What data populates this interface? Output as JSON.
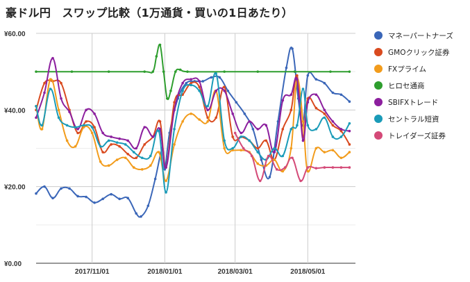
{
  "chart_data": {
    "type": "line",
    "title": "豪ドル円　スワップ比較（1万通貨・買いの1日あたり）",
    "y_ticks": [
      "¥0.00",
      "¥20.00",
      "¥40.00",
      "¥60.00"
    ],
    "x_ticks": [
      "2017/11/01",
      "2018/01/01",
      "2018/03/01",
      "2018/05/01"
    ],
    "ylim": [
      0,
      60
    ],
    "xlim": [
      "2017-09-15",
      "2018-06-10"
    ],
    "grid": true,
    "legend_position": "right",
    "series": [
      {
        "name": "マネーパートナーズ",
        "color": "#3a66b8",
        "points": [
          [
            "2017-09-15",
            18.2
          ],
          [
            "2017-09-22",
            20
          ],
          [
            "2017-09-29",
            17
          ],
          [
            "2017-10-06",
            19.5
          ],
          [
            "2017-10-13",
            19.5
          ],
          [
            "2017-10-20",
            17.5
          ],
          [
            "2017-10-27",
            17.3
          ],
          [
            "2017-11-03",
            15.8
          ],
          [
            "2017-11-10",
            16.8
          ],
          [
            "2017-11-17",
            18
          ],
          [
            "2017-11-24",
            16.8
          ],
          [
            "2017-12-01",
            17
          ],
          [
            "2017-12-08",
            13
          ],
          [
            "2017-12-12",
            12.2
          ],
          [
            "2017-12-18",
            15
          ],
          [
            "2017-12-24",
            22
          ],
          [
            "2017-12-30",
            30
          ],
          [
            "2018-01-01",
            24.5
          ],
          [
            "2018-01-05",
            34
          ],
          [
            "2018-01-12",
            43
          ],
          [
            "2018-01-19",
            47
          ],
          [
            "2018-01-26",
            47.5
          ],
          [
            "2018-02-02",
            47.5
          ],
          [
            "2018-02-09",
            48.5
          ],
          [
            "2018-02-16",
            48.5
          ],
          [
            "2018-02-23",
            45
          ],
          [
            "2018-03-02",
            42
          ],
          [
            "2018-03-09",
            39
          ],
          [
            "2018-03-16",
            35
          ],
          [
            "2018-03-23",
            27
          ],
          [
            "2018-03-30",
            22.5
          ],
          [
            "2018-04-06",
            37
          ],
          [
            "2018-04-13",
            51
          ],
          [
            "2018-04-18",
            56
          ],
          [
            "2018-04-23",
            43
          ],
          [
            "2018-04-27",
            36
          ],
          [
            "2018-05-01",
            49
          ],
          [
            "2018-05-08",
            48
          ],
          [
            "2018-05-15",
            47
          ],
          [
            "2018-05-22",
            44.5
          ],
          [
            "2018-05-29",
            44
          ],
          [
            "2018-06-05",
            42.2
          ]
        ]
      },
      {
        "name": "GMOクリック証券",
        "color": "#d94a1f",
        "points": [
          [
            "2017-09-15",
            40
          ],
          [
            "2017-09-22",
            47
          ],
          [
            "2017-09-29",
            47.5
          ],
          [
            "2017-10-06",
            47
          ],
          [
            "2017-10-13",
            40
          ],
          [
            "2017-10-20",
            34
          ],
          [
            "2017-10-27",
            37
          ],
          [
            "2017-11-03",
            35.5
          ],
          [
            "2017-11-10",
            29
          ],
          [
            "2017-11-17",
            31
          ],
          [
            "2017-11-24",
            30.5
          ],
          [
            "2017-12-01",
            28.5
          ],
          [
            "2017-12-08",
            27.5
          ],
          [
            "2017-12-15",
            31
          ],
          [
            "2017-12-22",
            33
          ],
          [
            "2017-12-28",
            37
          ],
          [
            "2018-01-02",
            25
          ],
          [
            "2018-01-09",
            42
          ],
          [
            "2018-01-16",
            44
          ],
          [
            "2018-01-23",
            47
          ],
          [
            "2018-01-30",
            46
          ],
          [
            "2018-02-06",
            38
          ],
          [
            "2018-02-13",
            38
          ],
          [
            "2018-02-20",
            46
          ],
          [
            "2018-02-27",
            33
          ],
          [
            "2018-03-06",
            33
          ],
          [
            "2018-03-13",
            32
          ],
          [
            "2018-03-20",
            30
          ],
          [
            "2018-03-27",
            32
          ],
          [
            "2018-04-03",
            27
          ],
          [
            "2018-04-10",
            35
          ],
          [
            "2018-04-17",
            40
          ],
          [
            "2018-04-22",
            49
          ],
          [
            "2018-04-27",
            33
          ],
          [
            "2018-05-01",
            43
          ],
          [
            "2018-05-08",
            40.5
          ],
          [
            "2018-05-15",
            39
          ],
          [
            "2018-05-22",
            36
          ],
          [
            "2018-05-29",
            34.5
          ],
          [
            "2018-06-05",
            31
          ]
        ]
      },
      {
        "name": "FXプライム",
        "color": "#f29c1c",
        "points": [
          [
            "2017-09-15",
            41
          ],
          [
            "2017-09-20",
            35
          ],
          [
            "2017-09-27",
            48
          ],
          [
            "2017-10-04",
            40
          ],
          [
            "2017-10-11",
            32
          ],
          [
            "2017-10-18",
            30.5
          ],
          [
            "2017-10-25",
            35.5
          ],
          [
            "2017-11-01",
            34
          ],
          [
            "2017-11-08",
            26.5
          ],
          [
            "2017-11-15",
            25.5
          ],
          [
            "2017-11-22",
            27
          ],
          [
            "2017-11-29",
            27.5
          ],
          [
            "2017-12-06",
            25
          ],
          [
            "2017-12-13",
            24.5
          ],
          [
            "2017-12-20",
            25.5
          ],
          [
            "2017-12-27",
            29
          ],
          [
            "2018-01-02",
            21.5
          ],
          [
            "2018-01-09",
            31
          ],
          [
            "2018-01-16",
            37
          ],
          [
            "2018-01-23",
            39
          ],
          [
            "2018-01-30",
            37.5
          ],
          [
            "2018-02-06",
            37
          ],
          [
            "2018-02-13",
            45
          ],
          [
            "2018-02-20",
            30
          ],
          [
            "2018-02-27",
            29.5
          ],
          [
            "2018-03-06",
            29.5
          ],
          [
            "2018-03-13",
            29
          ],
          [
            "2018-03-20",
            26
          ],
          [
            "2018-03-27",
            25.5
          ],
          [
            "2018-04-03",
            27
          ],
          [
            "2018-04-10",
            24
          ],
          [
            "2018-04-17",
            30
          ],
          [
            "2018-04-22",
            48
          ],
          [
            "2018-04-27",
            37
          ],
          [
            "2018-05-01",
            24
          ],
          [
            "2018-05-08",
            30
          ],
          [
            "2018-05-15",
            29
          ],
          [
            "2018-05-22",
            29.5
          ],
          [
            "2018-05-29",
            27.5
          ],
          [
            "2018-06-05",
            29
          ]
        ]
      },
      {
        "name": "ヒロセ通商",
        "color": "#2e9e2e",
        "points": [
          [
            "2017-09-15",
            50
          ],
          [
            "2017-10-15",
            50
          ],
          [
            "2017-11-15",
            50
          ],
          [
            "2017-12-15",
            50
          ],
          [
            "2017-12-22",
            50
          ],
          [
            "2017-12-25",
            54
          ],
          [
            "2017-12-28",
            57
          ],
          [
            "2017-12-31",
            50
          ],
          [
            "2018-01-03",
            43
          ],
          [
            "2018-01-06",
            45
          ],
          [
            "2018-01-10",
            50
          ],
          [
            "2018-01-14",
            50.5
          ],
          [
            "2018-01-20",
            50
          ],
          [
            "2018-02-20",
            50
          ],
          [
            "2018-03-20",
            50
          ],
          [
            "2018-04-20",
            50
          ],
          [
            "2018-05-20",
            50
          ],
          [
            "2018-06-05",
            50
          ]
        ]
      },
      {
        "name": "SBIFXトレード",
        "color": "#8c1f9e",
        "points": [
          [
            "2017-09-15",
            38
          ],
          [
            "2017-09-22",
            44.5
          ],
          [
            "2017-09-29",
            53.5
          ],
          [
            "2017-10-06",
            43
          ],
          [
            "2017-10-13",
            39.5
          ],
          [
            "2017-10-20",
            35
          ],
          [
            "2017-10-27",
            40
          ],
          [
            "2017-11-03",
            39
          ],
          [
            "2017-11-10",
            34
          ],
          [
            "2017-11-17",
            33
          ],
          [
            "2017-11-24",
            32.5
          ],
          [
            "2017-12-01",
            32
          ],
          [
            "2017-12-08",
            30
          ],
          [
            "2017-12-15",
            35.5
          ],
          [
            "2017-12-22",
            33
          ],
          [
            "2017-12-28",
            35
          ],
          [
            "2018-01-02",
            25
          ],
          [
            "2018-01-09",
            40
          ],
          [
            "2018-01-16",
            47
          ],
          [
            "2018-01-23",
            48
          ],
          [
            "2018-01-30",
            47.5
          ],
          [
            "2018-02-06",
            40
          ],
          [
            "2018-02-13",
            45
          ],
          [
            "2018-02-20",
            45
          ],
          [
            "2018-02-27",
            39
          ],
          [
            "2018-03-06",
            34
          ],
          [
            "2018-03-13",
            37
          ],
          [
            "2018-03-20",
            35
          ],
          [
            "2018-03-27",
            36
          ],
          [
            "2018-04-03",
            29
          ],
          [
            "2018-04-10",
            42.5
          ],
          [
            "2018-04-17",
            44
          ],
          [
            "2018-04-22",
            48
          ],
          [
            "2018-04-27",
            32
          ],
          [
            "2018-05-01",
            42
          ],
          [
            "2018-05-08",
            44
          ],
          [
            "2018-05-15",
            40
          ],
          [
            "2018-05-22",
            37
          ],
          [
            "2018-05-29",
            35
          ],
          [
            "2018-06-05",
            34.5
          ]
        ]
      },
      {
        "name": "セントラル短資",
        "color": "#1a9bb8",
        "points": [
          [
            "2017-09-15",
            41
          ],
          [
            "2017-09-20",
            36
          ],
          [
            "2017-09-27",
            45.5
          ],
          [
            "2017-10-04",
            38
          ],
          [
            "2017-10-11",
            36
          ],
          [
            "2017-10-18",
            35.5
          ],
          [
            "2017-10-25",
            36
          ],
          [
            "2017-11-01",
            35.5
          ],
          [
            "2017-11-08",
            30.5
          ],
          [
            "2017-11-15",
            32
          ],
          [
            "2017-11-22",
            31.5
          ],
          [
            "2017-11-29",
            31
          ],
          [
            "2017-12-06",
            29
          ],
          [
            "2017-12-13",
            27.5
          ],
          [
            "2017-12-20",
            28
          ],
          [
            "2017-12-27",
            34.5
          ],
          [
            "2018-01-02",
            18.5
          ],
          [
            "2018-01-09",
            35
          ],
          [
            "2018-01-16",
            45
          ],
          [
            "2018-01-23",
            46.5
          ],
          [
            "2018-01-30",
            45
          ],
          [
            "2018-02-06",
            41
          ],
          [
            "2018-02-13",
            49.5
          ],
          [
            "2018-02-20",
            32
          ],
          [
            "2018-02-27",
            30
          ],
          [
            "2018-03-06",
            33
          ],
          [
            "2018-03-13",
            32
          ],
          [
            "2018-03-20",
            29
          ],
          [
            "2018-03-27",
            27
          ],
          [
            "2018-04-03",
            30
          ],
          [
            "2018-04-10",
            28
          ],
          [
            "2018-04-17",
            35
          ],
          [
            "2018-04-22",
            36
          ],
          [
            "2018-04-27",
            45.5
          ],
          [
            "2018-05-01",
            36
          ],
          [
            "2018-05-08",
            35
          ],
          [
            "2018-05-15",
            38
          ],
          [
            "2018-05-22",
            33
          ],
          [
            "2018-05-29",
            33
          ],
          [
            "2018-06-05",
            36.5
          ]
        ]
      },
      {
        "name": "トレイダーズ証券",
        "color": "#d44a78",
        "points": [
          [
            "2018-03-01",
            34
          ],
          [
            "2018-03-08",
            30
          ],
          [
            "2018-03-15",
            28
          ],
          [
            "2018-03-22",
            21.5
          ],
          [
            "2018-03-29",
            28
          ],
          [
            "2018-04-05",
            24.5
          ],
          [
            "2018-04-12",
            25
          ],
          [
            "2018-04-18",
            27.5
          ],
          [
            "2018-04-25",
            21.5
          ],
          [
            "2018-05-01",
            25
          ],
          [
            "2018-05-08",
            24.8
          ],
          [
            "2018-05-15",
            25
          ],
          [
            "2018-05-22",
            25
          ],
          [
            "2018-05-29",
            25
          ],
          [
            "2018-06-05",
            25
          ]
        ]
      }
    ]
  }
}
